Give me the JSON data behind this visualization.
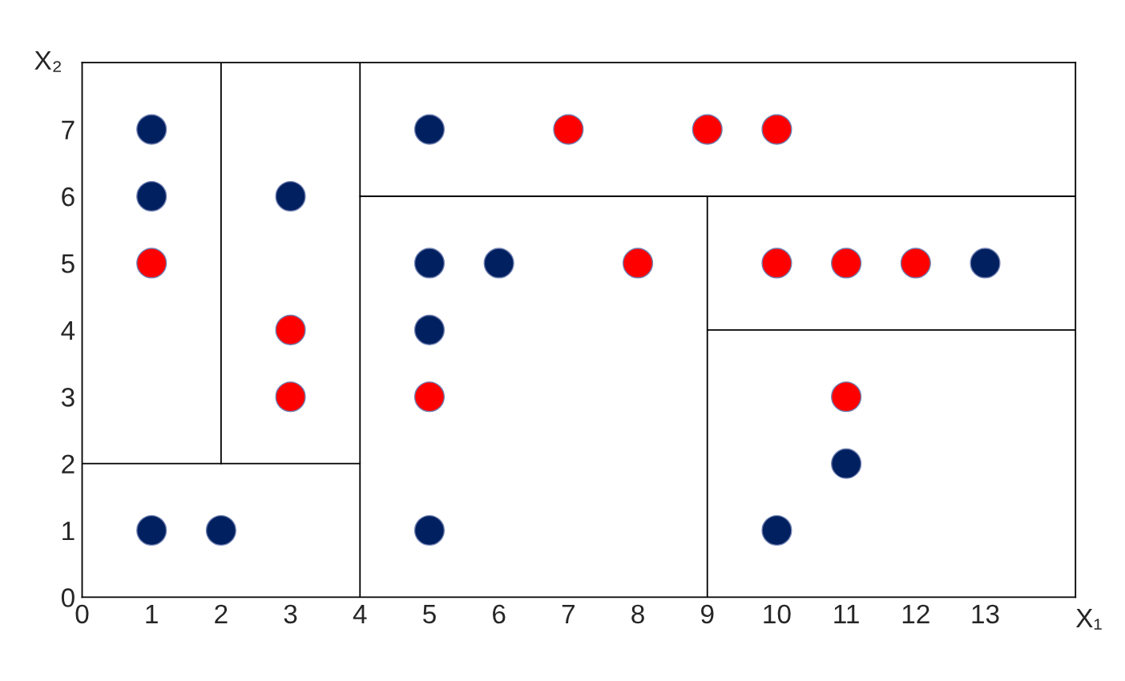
{
  "chart_data": {
    "type": "scatter",
    "xlabel": "X₁",
    "ylabel": "X₂",
    "xlim": [
      0,
      14.3
    ],
    "ylim": [
      0,
      8
    ],
    "xticks": [
      0,
      1,
      2,
      3,
      4,
      5,
      6,
      7,
      8,
      9,
      10,
      11,
      12,
      13
    ],
    "yticks": [
      0,
      1,
      2,
      3,
      4,
      5,
      6,
      7
    ],
    "grid": false,
    "legend": false,
    "marker": "circle",
    "series": [
      {
        "color": "#002060",
        "x": [
          1,
          1,
          3,
          5,
          5,
          6,
          13,
          5,
          11,
          1,
          2,
          5,
          10
        ],
        "values": [
          7,
          6,
          6,
          7,
          5,
          5,
          5,
          4,
          2,
          1,
          1,
          1,
          1
        ]
      },
      {
        "color": "#ff0000",
        "x": [
          1,
          3,
          3,
          7,
          9,
          10,
          8,
          10,
          11,
          12,
          5,
          11
        ],
        "values": [
          5,
          4,
          3,
          7,
          7,
          7,
          5,
          5,
          5,
          5,
          3,
          3
        ]
      },
      {
        "type": "line",
        "color": "#000000",
        "marker": "none",
        "x": [
          2,
          2
        ],
        "values": [
          2,
          8
        ]
      },
      {
        "type": "line",
        "color": "#000000",
        "marker": "none",
        "x": [
          0,
          4
        ],
        "values": [
          2,
          2
        ]
      },
      {
        "type": "line",
        "color": "#000000",
        "marker": "none",
        "x": [
          4,
          4
        ],
        "values": [
          0,
          8
        ]
      },
      {
        "type": "line",
        "color": "#000000",
        "marker": "none",
        "x": [
          4,
          14.3
        ],
        "values": [
          6,
          6
        ]
      },
      {
        "type": "line",
        "color": "#000000",
        "marker": "none",
        "x": [
          9,
          9
        ],
        "values": [
          0,
          6
        ]
      },
      {
        "type": "line",
        "color": "#000000",
        "marker": "none",
        "x": [
          9,
          14.3
        ],
        "values": [
          4,
          4
        ]
      }
    ]
  }
}
